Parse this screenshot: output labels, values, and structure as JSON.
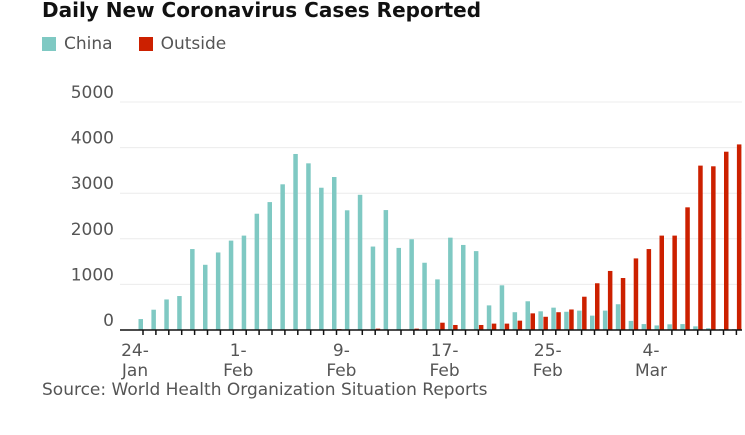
{
  "chart_data": {
    "type": "bar",
    "title": "Daily New Coronavirus Cases Reported",
    "source": "Source: World Health Organization Situation Reports",
    "ylim": [
      0,
      5000
    ],
    "yticks": [
      0,
      1000,
      2000,
      3000,
      4000,
      5000
    ],
    "grid": true,
    "legend_placement": "top-left",
    "tick_labels": [
      {
        "index": 0,
        "line1": "24-",
        "line2": "Jan"
      },
      {
        "index": 8,
        "line1": "1-",
        "line2": "Feb"
      },
      {
        "index": 16,
        "line1": "9-",
        "line2": "Feb"
      },
      {
        "index": 24,
        "line1": "17-",
        "line2": "Feb"
      },
      {
        "index": 32,
        "line1": "25-",
        "line2": "Feb"
      },
      {
        "index": 40,
        "line1": "4-",
        "line2": "Mar"
      }
    ],
    "x": [
      "2020-01-24",
      "2020-01-25",
      "2020-01-26",
      "2020-01-27",
      "2020-01-28",
      "2020-01-29",
      "2020-01-30",
      "2020-01-31",
      "2020-02-01",
      "2020-02-02",
      "2020-02-03",
      "2020-02-04",
      "2020-02-05",
      "2020-02-06",
      "2020-02-07",
      "2020-02-08",
      "2020-02-09",
      "2020-02-10",
      "2020-02-11",
      "2020-02-12",
      "2020-02-13",
      "2020-02-14",
      "2020-02-15",
      "2020-02-16",
      "2020-02-17",
      "2020-02-18",
      "2020-02-19",
      "2020-02-20",
      "2020-02-21",
      "2020-02-22",
      "2020-02-23",
      "2020-02-24",
      "2020-02-25",
      "2020-02-26",
      "2020-02-27",
      "2020-02-28",
      "2020-02-29",
      "2020-03-01",
      "2020-03-02",
      "2020-03-03",
      "2020-03-04",
      "2020-03-05",
      "2020-03-06",
      "2020-03-07",
      "2020-03-08",
      "2020-03-09",
      "2020-03-10"
    ],
    "series": [
      {
        "name": "China",
        "color": "#7fc9c3",
        "values": [
          240,
          445,
          670,
          745,
          1775,
          1430,
          1700,
          1960,
          2070,
          2550,
          2805,
          3195,
          3860,
          3655,
          3120,
          3355,
          2625,
          2965,
          1830,
          2630,
          1800,
          1990,
          1475,
          1110,
          2025,
          1865,
          1730,
          540,
          980,
          390,
          630,
          410,
          490,
          400,
          425,
          315,
          425,
          565,
          200,
          130,
          100,
          125,
          130,
          80,
          40,
          20,
          20
        ]
      },
      {
        "name": "Outside",
        "color": "#cc2000",
        "values": [
          0,
          0,
          0,
          0,
          0,
          0,
          0,
          0,
          0,
          0,
          0,
          0,
          0,
          0,
          0,
          20,
          0,
          0,
          30,
          10,
          0,
          30,
          0,
          160,
          110,
          0,
          110,
          140,
          140,
          205,
          365,
          290,
          390,
          450,
          730,
          1025,
          1295,
          1140,
          1570,
          1775,
          2070,
          2070,
          2690,
          3605,
          3590,
          3910,
          4070
        ]
      }
    ]
  }
}
